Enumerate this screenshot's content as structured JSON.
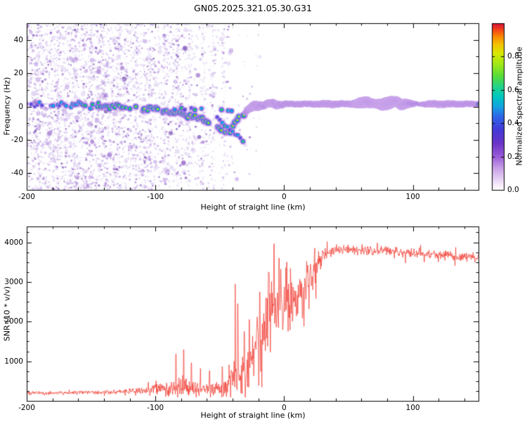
{
  "title": "GN05.2025.321.05.30.G31",
  "chart_data": [
    {
      "type": "heatmap",
      "panel": "top",
      "title": "GN05.2025.321.05.30.G31",
      "xlabel": "Height of straight line (km)",
      "ylabel": "Frequency (Hz)",
      "xlim": [
        -200,
        151
      ],
      "ylim": [
        -50,
        50
      ],
      "xticks": [
        -200,
        -100,
        0,
        100
      ],
      "yticks": [
        -40,
        -20,
        0,
        20,
        40
      ],
      "grid": false,
      "colorbar": {
        "label": "Normalized spectral amplitude",
        "range": [
          0,
          1
        ],
        "ticks": [
          "0.0",
          "0.2",
          "0.4",
          "0.6",
          "0.8"
        ],
        "colormap": [
          [
            0,
            "#ffffff"
          ],
          [
            0.05,
            "#eedcf7"
          ],
          [
            0.13,
            "#c9a0e8"
          ],
          [
            0.2,
            "#9a5cd8"
          ],
          [
            0.28,
            "#6a34c8"
          ],
          [
            0.36,
            "#4438d8"
          ],
          [
            0.44,
            "#2e66e8"
          ],
          [
            0.5,
            "#13a3e0"
          ],
          [
            0.56,
            "#00c8c0"
          ],
          [
            0.62,
            "#22d488"
          ],
          [
            0.68,
            "#55dc3c"
          ],
          [
            0.75,
            "#9ce818"
          ],
          [
            0.82,
            "#d8e800"
          ],
          [
            0.87,
            "#f4c400"
          ],
          [
            0.92,
            "#fa8800"
          ],
          [
            0.96,
            "#f4431a"
          ],
          [
            1,
            "#d4103a"
          ]
        ]
      },
      "description": "Normalized spectral amplitude vs height of straight line: diffuse purple speckle noise for heights below about -40 km; a beaded high-amplitude ridge near 0 Hz drifts down to about -16 Hz near -45 km, returns to about +1.5 Hz by -25 km and continues as a sharp narrow horizontal line (red core, green/blue/purple halo) out to 151 km, with thickness bumps near +60 to +95 km.",
      "ridge_track_km_hz": [
        [
          -200,
          2
        ],
        [
          -193,
          0.5
        ],
        [
          -186,
          2.5
        ],
        [
          -179,
          0
        ],
        [
          -172,
          1.5
        ],
        [
          -165,
          0.5
        ],
        [
          -158,
          2
        ],
        [
          -151,
          0
        ],
        [
          -144,
          1
        ],
        [
          -137,
          -0.5
        ],
        [
          -130,
          0.5
        ],
        [
          -123,
          -1.5
        ],
        [
          -116,
          -0.5
        ],
        [
          -109,
          -2
        ],
        [
          -102,
          -1
        ],
        [
          -96,
          -2.5
        ],
        [
          -90,
          -3.5
        ],
        [
          -84,
          -3
        ],
        [
          -78,
          -5
        ],
        [
          -72,
          -6
        ],
        [
          -66,
          -7
        ],
        [
          -60,
          -9
        ],
        [
          -55,
          -11
        ],
        [
          -50,
          -13
        ],
        [
          -46,
          -15
        ],
        [
          -43,
          -16
        ],
        [
          -40,
          -12
        ],
        [
          -37,
          -9
        ],
        [
          -34,
          -6
        ],
        [
          -31,
          -3.5
        ],
        [
          -28,
          -2
        ],
        [
          -25,
          -0.5
        ],
        [
          -21,
          0.5
        ],
        [
          -16,
          1
        ],
        [
          -11,
          1.8
        ],
        [
          -6,
          1.2
        ],
        [
          0,
          1.5
        ],
        [
          15,
          1.5
        ],
        [
          30,
          1.5
        ],
        [
          45,
          1.5
        ],
        [
          58,
          1.8
        ],
        [
          64,
          2.8
        ],
        [
          70,
          1.8
        ],
        [
          76,
          1
        ],
        [
          82,
          2.6
        ],
        [
          87,
          3
        ],
        [
          91,
          1
        ],
        [
          95,
          2
        ],
        [
          100,
          1.5
        ],
        [
          115,
          1.5
        ],
        [
          130,
          1.5
        ],
        [
          151,
          1.5
        ]
      ],
      "secondary_branch_km_hz": [
        [
          -52,
          -7
        ],
        [
          -46,
          -11
        ],
        [
          -40,
          -15
        ],
        [
          -35,
          -18.5
        ],
        [
          -31,
          -21
        ]
      ],
      "noise_region_km": [
        -200,
        -35
      ],
      "noise_streak_heights_km": [
        -190,
        -176,
        -163,
        -150,
        -141,
        -128,
        -115,
        -104,
        -93,
        -83,
        -74,
        -63,
        -55,
        -47
      ]
    },
    {
      "type": "line",
      "panel": "bottom",
      "xlabel": "Height of straight line (km)",
      "ylabel": "SNR (10 * v/v)",
      "xlim": [
        -200,
        151
      ],
      "ylim": [
        0,
        4400
      ],
      "xticks": [
        -200,
        -100,
        0,
        100
      ],
      "yticks": [
        1000,
        2000,
        3000,
        4000
      ],
      "grid": false,
      "series": [
        {
          "name": "SNR",
          "color": "#f03228",
          "envelope_km_mean_halfrange": [
            [
              -200,
              200,
              55
            ],
            [
              -170,
              205,
              55
            ],
            [
              -145,
              215,
              60
            ],
            [
              -130,
              230,
              75
            ],
            [
              -118,
              250,
              95
            ],
            [
              -108,
              275,
              120
            ],
            [
              -100,
              300,
              170
            ],
            [
              -93,
              340,
              230
            ],
            [
              -87,
              370,
              300
            ],
            [
              -81,
              360,
              340
            ],
            [
              -75,
              345,
              300
            ],
            [
              -69,
              315,
              230
            ],
            [
              -63,
              300,
              190
            ],
            [
              -56,
              305,
              210
            ],
            [
              -50,
              320,
              260
            ],
            [
              -45,
              360,
              320
            ],
            [
              -41,
              600,
              800
            ],
            [
              -37,
              850,
              1100
            ],
            [
              -33,
              650,
              750
            ],
            [
              -29,
              750,
              800
            ],
            [
              -25,
              1000,
              900
            ],
            [
              -21,
              1300,
              1000
            ],
            [
              -17,
              1600,
              1050
            ],
            [
              -13,
              1950,
              1150
            ],
            [
              -9,
              2200,
              1200
            ],
            [
              -5,
              2350,
              1150
            ],
            [
              -1,
              2450,
              1050
            ],
            [
              3,
              2500,
              1000
            ],
            [
              7,
              2450,
              1000
            ],
            [
              11,
              2600,
              900
            ],
            [
              15,
              2800,
              800
            ],
            [
              19,
              3000,
              700
            ],
            [
              23,
              3250,
              500
            ],
            [
              27,
              3500,
              350
            ],
            [
              31,
              3650,
              260
            ],
            [
              36,
              3780,
              190
            ],
            [
              42,
              3820,
              170
            ],
            [
              50,
              3830,
              160
            ],
            [
              60,
              3800,
              150
            ],
            [
              70,
              3790,
              155
            ],
            [
              80,
              3800,
              150
            ],
            [
              90,
              3760,
              155
            ],
            [
              100,
              3730,
              150
            ],
            [
              110,
              3710,
              150
            ],
            [
              120,
              3690,
              150
            ],
            [
              130,
              3660,
              155
            ],
            [
              140,
              3630,
              150
            ],
            [
              151,
              3600,
              145
            ]
          ],
          "spike_points_km_value": [
            [
              -84,
              1180
            ],
            [
              -78,
              1290
            ],
            [
              -72,
              960
            ],
            [
              -65,
              820
            ],
            [
              -58,
              760
            ],
            [
              -48,
              860
            ],
            [
              -38,
              2950
            ],
            [
              -36,
              2450
            ],
            [
              -31,
              1750
            ],
            [
              -27,
              2050
            ],
            [
              -19,
              2750
            ],
            [
              -12,
              3250
            ],
            [
              -8,
              3950
            ],
            [
              -4,
              3600
            ],
            [
              2,
              3500
            ]
          ]
        }
      ],
      "description": "Receiver SNR vs height of straight line: flat noisy baseline near 200 below -130 km, growing fluctuations and isolated spikes between -100 and -45 km, sharp highly volatile rise between -40 and +20 km, then a noisy plateau near 3800 that slowly declines to about 3600 at 151 km."
    }
  ]
}
